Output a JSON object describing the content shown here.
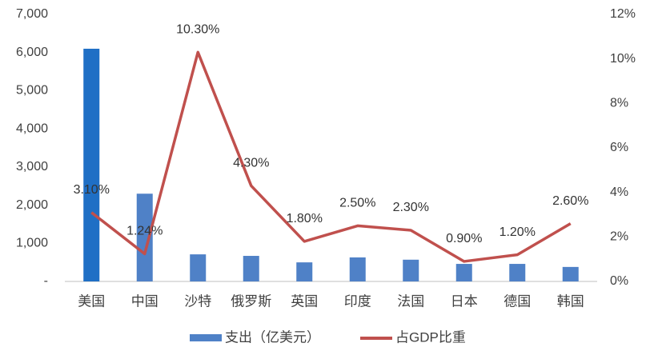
{
  "chart_data": {
    "type": "bar-line",
    "categories": [
      "美国",
      "中国",
      "沙特",
      "俄罗斯",
      "英国",
      "印度",
      "法国",
      "日本",
      "德国",
      "韩国"
    ],
    "series": [
      {
        "name": "支出（亿美元）",
        "type": "bar",
        "color": "#4f81c7",
        "colors": [
          "#1f6fc5",
          "#4f81c7",
          "#4f81c7",
          "#4f81c7",
          "#4f81c7",
          "#4f81c7",
          "#4f81c7",
          "#4f81c7",
          "#4f81c7",
          "#4f81c7"
        ],
        "values": [
          6100,
          2300,
          710,
          670,
          500,
          630,
          570,
          460,
          460,
          380
        ]
      },
      {
        "name": "占GDP比重",
        "type": "line",
        "axis": "y2",
        "color": "#c0504d",
        "values": [
          3.1,
          1.24,
          10.3,
          4.3,
          1.8,
          2.5,
          2.3,
          0.9,
          1.2,
          2.6
        ],
        "value_labels": [
          "3.10%",
          "1.24%",
          "10.30%",
          "4.30%",
          "1.80%",
          "2.50%",
          "2.30%",
          "0.90%",
          "1.20%",
          "2.60%"
        ]
      }
    ],
    "ylim": [
      0,
      7000
    ],
    "yticks": [
      {
        "value": 0,
        "label": "-"
      },
      {
        "value": 1000,
        "label": "1,000"
      },
      {
        "value": 2000,
        "label": "2,000"
      },
      {
        "value": 3000,
        "label": "3,000"
      },
      {
        "value": 4000,
        "label": "4,000"
      },
      {
        "value": 5000,
        "label": "5,000"
      },
      {
        "value": 6000,
        "label": "6,000"
      },
      {
        "value": 7000,
        "label": "7,000"
      }
    ],
    "y2lim": [
      0,
      12
    ],
    "y2ticks": [
      {
        "value": 0,
        "label": "0%"
      },
      {
        "value": 2,
        "label": "2%"
      },
      {
        "value": 4,
        "label": "4%"
      },
      {
        "value": 6,
        "label": "6%"
      },
      {
        "value": 8,
        "label": "8%"
      },
      {
        "value": 10,
        "label": "10%"
      },
      {
        "value": 12,
        "label": "12%"
      }
    ],
    "grid": false,
    "legend": "bottom"
  }
}
